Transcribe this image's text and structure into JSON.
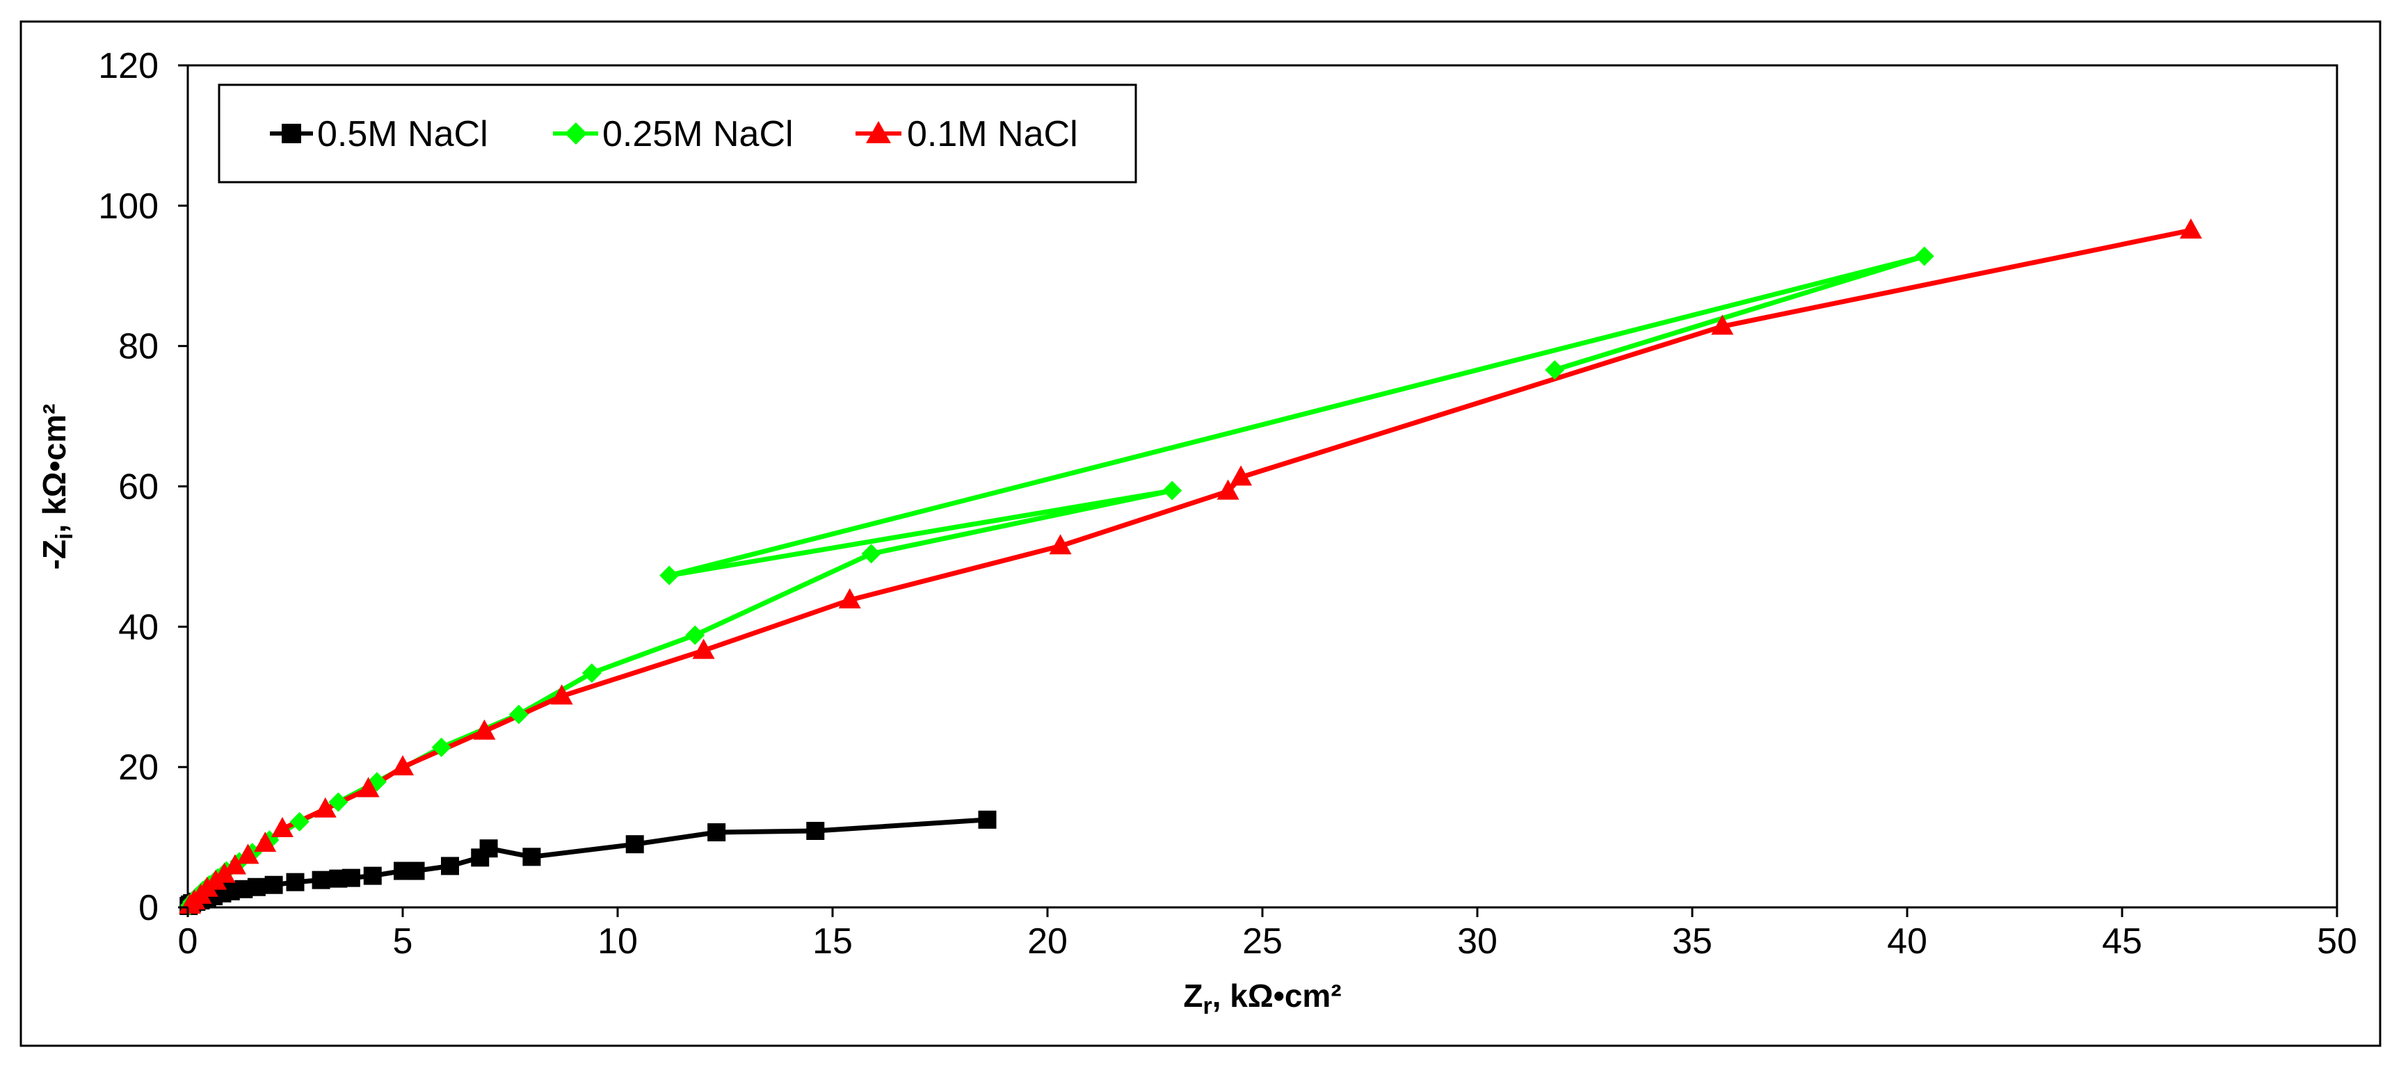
{
  "chart_data": {
    "type": "line",
    "title": "",
    "xlabel": {
      "main": "Z",
      "sub": "r",
      "rest": ", kΩ•cm²"
    },
    "ylabel": {
      "main": "-Z",
      "sub": "i",
      "rest": ", kΩ•cm²"
    },
    "xlim": [
      0,
      50
    ],
    "ylim": [
      0,
      120
    ],
    "xticks": [
      0,
      5,
      10,
      15,
      20,
      25,
      30,
      35,
      40,
      45,
      50
    ],
    "yticks": [
      0,
      20,
      40,
      60,
      80,
      100,
      120
    ],
    "xtick_labels": [
      "0",
      "5",
      "10",
      "15",
      "20",
      "25",
      "30",
      "35",
      "40",
      "45",
      "50"
    ],
    "ytick_labels": [
      "0",
      "20",
      "40",
      "60",
      "80",
      "100",
      "120"
    ],
    "grid": false,
    "legend_position": "top-left",
    "series": [
      {
        "name": "0.5M NaCl",
        "color": "#000000",
        "marker": "square",
        "x": [
          0.02,
          0.05,
          0.1,
          0.2,
          0.3,
          0.45,
          0.6,
          0.8,
          1.0,
          1.3,
          1.6,
          2.0,
          2.5,
          3.1,
          3.5,
          3.8,
          4.3,
          5.0,
          5.3,
          6.1,
          6.8,
          7.0,
          8.0,
          10.4,
          12.3,
          14.6,
          18.6
        ],
        "y": [
          0.2,
          0.4,
          0.6,
          0.8,
          1.0,
          1.3,
          1.6,
          2.0,
          2.3,
          2.6,
          2.9,
          3.2,
          3.6,
          3.9,
          4.1,
          4.2,
          4.5,
          5.2,
          5.2,
          5.9,
          7.1,
          8.4,
          7.2,
          9.0,
          10.7,
          10.9,
          12.5
        ]
      },
      {
        "name": "0.25M NaCl",
        "color": "#00ff00",
        "marker": "diamond",
        "x": [
          0.05,
          0.1,
          0.2,
          0.35,
          0.5,
          0.7,
          0.9,
          1.2,
          1.5,
          1.9,
          2.6,
          3.5,
          4.4,
          5.9,
          7.7,
          9.4,
          11.8,
          15.9,
          22.9,
          11.2,
          40.4,
          31.8
        ],
        "y": [
          0.3,
          0.8,
          1.5,
          2.4,
          3.2,
          4.2,
          5.2,
          6.5,
          7.8,
          9.6,
          12.2,
          15.0,
          17.9,
          22.8,
          27.5,
          33.4,
          38.8,
          50.4,
          59.4,
          47.3,
          92.8,
          76.6
        ]
      },
      {
        "name": "0.1M NaCl",
        "color": "#ff0000",
        "marker": "triangle",
        "x": [
          0.05,
          0.15,
          0.3,
          0.45,
          0.65,
          0.85,
          1.1,
          1.4,
          1.8,
          2.2,
          3.2,
          4.2,
          5.0,
          6.9,
          8.7,
          12.0,
          15.4,
          20.3,
          24.2,
          24.5,
          35.7,
          46.6
        ],
        "y": [
          0.3,
          0.9,
          1.7,
          2.7,
          3.7,
          4.7,
          5.9,
          7.4,
          9.1,
          11.2,
          14.0,
          16.9,
          20.0,
          25.1,
          30.1,
          36.6,
          43.8,
          51.5,
          59.3,
          61.3,
          82.8,
          96.5
        ]
      }
    ]
  }
}
